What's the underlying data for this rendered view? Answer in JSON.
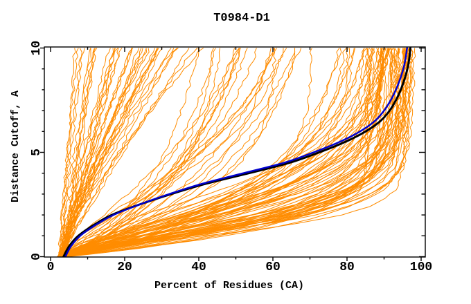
{
  "chart_data": {
    "type": "line",
    "title": "T0984-D1",
    "xlabel": "Percent of Residues (CA)",
    "ylabel": "Distance Cutoff, A",
    "xlim": [
      0,
      100
    ],
    "ylim": [
      0,
      10
    ],
    "grid": false,
    "legend": "none",
    "background": "#FFFFFF",
    "axis_color": "#000000",
    "x_major_ticks": [
      0,
      20,
      40,
      60,
      80,
      100
    ],
    "x_minor_ticks": [
      10,
      30,
      50,
      70,
      90
    ],
    "y_major_ticks": [
      0,
      5,
      10
    ],
    "y_minor_ticks": [
      1,
      2,
      3,
      4,
      6,
      7,
      8,
      9
    ],
    "cutoffs": [
      0,
      0.5,
      1,
      1.5,
      2,
      2.5,
      3,
      3.5,
      4,
      4.5,
      5,
      5.5,
      6,
      6.5,
      7,
      7.5,
      8,
      8.5,
      9,
      9.5,
      10
    ],
    "highlighted_series": [
      {
        "name": "highlight-model-black",
        "color": "#000000",
        "width": 3,
        "percents": [
          3.5,
          5,
          7.5,
          11.5,
          16.5,
          24,
          32.5,
          42,
          53.5,
          64.5,
          72.5,
          79.5,
          85,
          89,
          91.5,
          93.2,
          94.5,
          95.5,
          96.3,
          96.8,
          97.1
        ]
      },
      {
        "name": "highlight-model-navy",
        "color": "#0000CC",
        "width": 2.5,
        "percents": [
          4,
          5.5,
          8,
          12,
          17,
          24,
          32,
          41,
          52,
          63,
          71,
          78,
          83.5,
          87.5,
          90,
          91.8,
          93.2,
          94.3,
          95.2,
          95.8,
          96.2
        ]
      }
    ],
    "ensemble": {
      "name": "all-models",
      "color": "#FF8C00",
      "width": 1,
      "seed": 1984,
      "sample_step": 0.2,
      "noise": 0.45,
      "families": [
        {
          "kind": "sigmoid",
          "count": 70,
          "p0": [
            2.5,
            5
          ],
          "pmax": [
            80,
            99
          ],
          "pmax_bias": 0.6,
          "tau": [
            1.4,
            4.0
          ],
          "m": [
            0.9,
            1.8
          ]
        },
        {
          "kind": "sigmoid",
          "count": 22,
          "p0": [
            2.5,
            5
          ],
          "pmax": [
            45,
            80
          ],
          "pmax_bias": 1.0,
          "tau": [
            2.5,
            7.0
          ],
          "m": [
            0.9,
            1.5
          ]
        },
        {
          "kind": "power",
          "count": 38,
          "p0": [
            2,
            4
          ],
          "pend": [
            6,
            42
          ],
          "pend_bias": 1.6,
          "g": [
            0.85,
            1.3
          ]
        }
      ]
    }
  }
}
